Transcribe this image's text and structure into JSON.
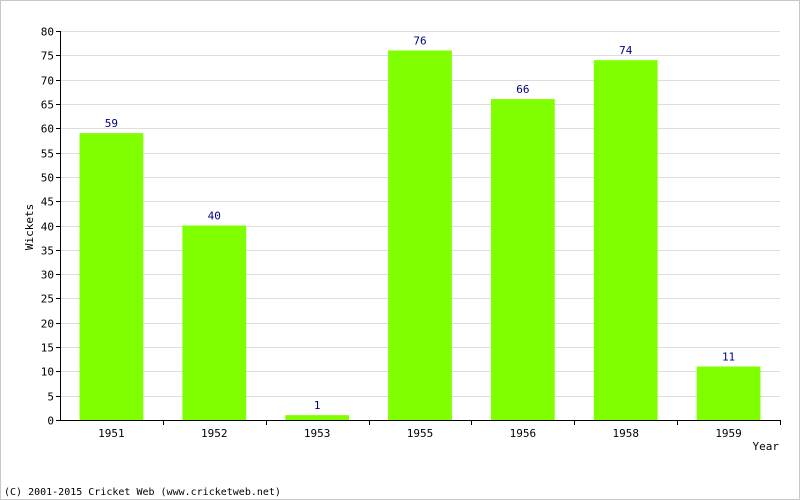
{
  "chart_data": {
    "type": "bar",
    "categories": [
      "1951",
      "1952",
      "1953",
      "1955",
      "1956",
      "1958",
      "1959"
    ],
    "values": [
      59,
      40,
      1,
      76,
      66,
      74,
      11
    ],
    "data_labels": [
      "59",
      "40",
      "1",
      "76",
      "66",
      "74",
      "11"
    ],
    "title": "",
    "xlabel": "Year",
    "ylabel": "Wickets",
    "ylim": [
      0,
      80
    ],
    "yticks": [
      "0",
      "5",
      "10",
      "15",
      "20",
      "25",
      "30",
      "35",
      "40",
      "45",
      "50",
      "55",
      "60",
      "65",
      "70",
      "75",
      "80"
    ],
    "grid": true,
    "legend": "none",
    "bar_color": "#80ff00",
    "label_color": "#000080"
  },
  "footer": {
    "copyright": "(C) 2001-2015 Cricket Web (www.cricketweb.net)"
  },
  "colors": {
    "background": "#ffffff",
    "border": "#c8c8c8",
    "grid": "#dddddd",
    "axis": "#000000"
  }
}
